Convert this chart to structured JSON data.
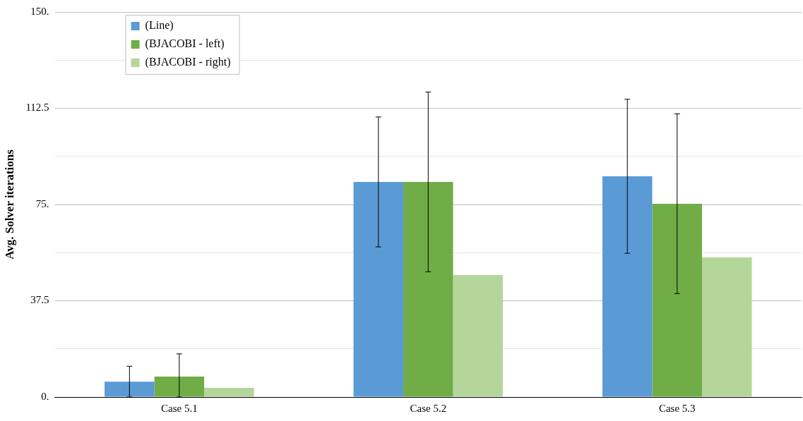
{
  "chart_data": {
    "type": "bar",
    "ylabel": "Avg. Solver iterations",
    "categories": [
      "Case 5.1",
      "Case 5.2",
      "Case 5.3"
    ],
    "series": [
      {
        "name": "(Line)",
        "color": "#5b9bd5",
        "values": [
          6.0,
          83.8,
          86.0
        ],
        "errors": [
          6.0,
          25.3,
          30.0
        ]
      },
      {
        "name": "(BJACOBI - left)",
        "color": "#70ad47",
        "values": [
          8.0,
          83.8,
          75.3
        ],
        "errors": [
          [
            0,
            16.8
          ],
          35.0,
          35.0
        ]
      },
      {
        "name": "(BJACOBI - right)",
        "color": "#b5d69b",
        "values": [
          3.6,
          47.5,
          54.4
        ]
      }
    ],
    "ylim": [
      0,
      150
    ],
    "yticks": [
      {
        "value": 0,
        "label": "0."
      },
      {
        "value": 18.75,
        "label": null
      },
      {
        "value": 37.5,
        "label": "37.5"
      },
      {
        "value": 56.25,
        "label": null
      },
      {
        "value": 75,
        "label": "75."
      },
      {
        "value": 93.75,
        "label": null
      },
      {
        "value": 112.5,
        "label": "112.5"
      },
      {
        "value": 131.25,
        "label": null
      },
      {
        "value": 150,
        "label": "150."
      }
    ],
    "grid": "y",
    "legend": "top left"
  }
}
